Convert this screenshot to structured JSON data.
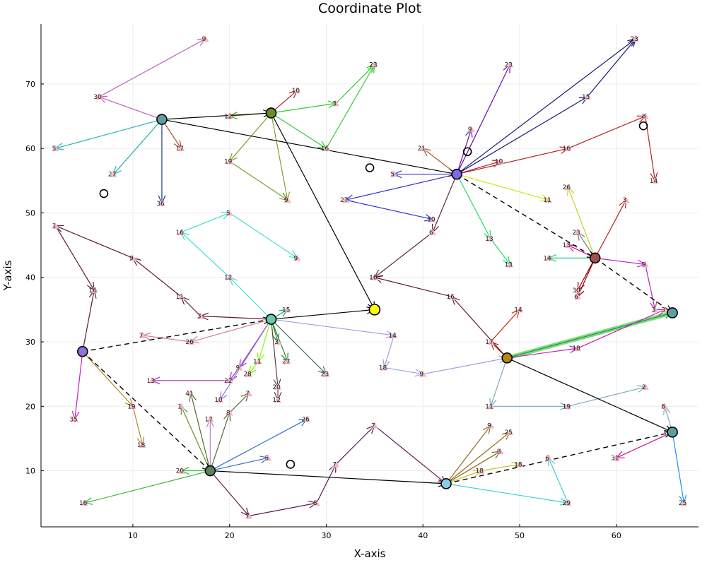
{
  "chart_data": {
    "type": "scatter",
    "title": "Coordinate Plot",
    "xlabel": "X-axis",
    "ylabel": "Y-axis",
    "xlim": [
      0.5,
      68.5
    ],
    "ylim": [
      1.3,
      79.3
    ],
    "xticks": [
      10,
      20,
      30,
      40,
      50,
      60
    ],
    "yticks": [
      10,
      20,
      30,
      40,
      50,
      60,
      70
    ],
    "grid": true,
    "legend": "none",
    "hubs": [
      {
        "id": "h1",
        "x": 13.0,
        "y": 64.5,
        "color": "#5f9ea0"
      },
      {
        "id": "h2",
        "x": 24.3,
        "y": 65.5,
        "color": "#6b8e23"
      },
      {
        "id": "h3",
        "x": 43.5,
        "y": 56.0,
        "color": "#7b68ee"
      },
      {
        "id": "h4",
        "x": 57.8,
        "y": 43.0,
        "color": "#a05050"
      },
      {
        "id": "h5",
        "x": 65.8,
        "y": 34.5,
        "color": "#5f9ea0"
      },
      {
        "id": "h6",
        "x": 24.3,
        "y": 33.5,
        "color": "#66cdaa"
      },
      {
        "id": "h7",
        "x": 4.8,
        "y": 28.5,
        "color": "#9370db"
      },
      {
        "id": "h8",
        "x": 48.7,
        "y": 27.5,
        "color": "#b8860b"
      },
      {
        "id": "h9",
        "x": 18.0,
        "y": 10.0,
        "color": "#5f7f5f"
      },
      {
        "id": "h10",
        "x": 42.4,
        "y": 8.0,
        "color": "#87ceeb"
      },
      {
        "id": "h11",
        "x": 65.8,
        "y": 16.0,
        "color": "#5f9ea0"
      }
    ],
    "target": {
      "x": 35.0,
      "y": 35.0,
      "color": "#ffff00"
    },
    "open_markers": [
      {
        "x": 7.0,
        "y": 53.0
      },
      {
        "x": 34.5,
        "y": 57.0
      },
      {
        "x": 44.6,
        "y": 59.5
      },
      {
        "x": 62.8,
        "y": 63.5
      },
      {
        "x": 26.3,
        "y": 11.0
      }
    ],
    "spokes": [
      {
        "from": "h1",
        "color": "#c060c0",
        "points": [
          {
            "label": "30",
            "x": 6.5,
            "y": 68.0
          },
          {
            "label": "9",
            "x": 17.5,
            "y": 77.0
          }
        ]
      },
      {
        "from": "h1",
        "color": "#20b2aa",
        "points": [
          {
            "label": "5",
            "x": 2.0,
            "y": 60.0
          }
        ]
      },
      {
        "from": "h1",
        "color": "#20b2aa",
        "points": [
          {
            "label": "27",
            "x": 8.0,
            "y": 56.0
          }
        ]
      },
      {
        "from": "h1",
        "color": "#1f3a93",
        "points": [
          {
            "label": "36",
            "x": 13.0,
            "y": 51.5
          }
        ]
      },
      {
        "from": "h1",
        "color": "#a0522d",
        "points": [
          {
            "label": "17",
            "x": 15.0,
            "y": 60.0
          }
        ]
      },
      {
        "from": "h2",
        "color": "#6b8e23",
        "points": [
          {
            "label": "12",
            "x": 20.0,
            "y": 65.0
          }
        ]
      },
      {
        "from": "h2",
        "color": "#b22222",
        "points": [
          {
            "label": "10",
            "x": 27.0,
            "y": 69.0
          }
        ]
      },
      {
        "from": "h2",
        "color": "#32cd32",
        "points": [
          {
            "label": "3",
            "x": 31.0,
            "y": 67.0
          },
          {
            "label": "23",
            "x": 35.0,
            "y": 73.0
          }
        ]
      },
      {
        "from": "h2",
        "color": "#32cd32",
        "points": [
          {
            "label": "16",
            "x": 30.0,
            "y": 60.0
          },
          {
            "label": "23",
            "x": 35.0,
            "y": 73.0
          }
        ]
      },
      {
        "from": "h2",
        "color": "#7f9f2f",
        "points": [
          {
            "label": "19",
            "x": 20.0,
            "y": 58.0
          },
          {
            "label": "9",
            "x": 26.0,
            "y": 52.0
          }
        ]
      },
      {
        "from": "h2",
        "color": "#7f9f2f",
        "points": [
          {
            "label": "9",
            "x": 26.0,
            "y": 52.0
          }
        ]
      },
      {
        "from": "h3",
        "color": "#6a0dad",
        "points": [
          {
            "label": "9",
            "x": 45.0,
            "y": 63.0
          }
        ]
      },
      {
        "from": "h3",
        "color": "#6a0dad",
        "points": [
          {
            "label": "23",
            "x": 49.0,
            "y": 73.0
          }
        ]
      },
      {
        "from": "h3",
        "color": "#191970",
        "points": [
          {
            "label": "15",
            "x": 57.0,
            "y": 68.0
          },
          {
            "label": "23",
            "x": 62.0,
            "y": 77.0
          }
        ]
      },
      {
        "from": "h3",
        "color": "#191970",
        "points": [
          {
            "label": "23",
            "x": 62.0,
            "y": 77.0
          }
        ]
      },
      {
        "from": "h3",
        "color": "#a0522d",
        "points": [
          {
            "label": "21",
            "x": 40.0,
            "y": 60.0
          }
        ]
      },
      {
        "from": "h3",
        "color": "#b22222",
        "points": [
          {
            "label": "10",
            "x": 48.0,
            "y": 58.0
          }
        ]
      },
      {
        "from": "h3",
        "color": "#b22222",
        "points": [
          {
            "label": "16",
            "x": 55.0,
            "y": 60.0
          },
          {
            "label": "8",
            "x": 63.0,
            "y": 65.0
          },
          {
            "label": "14",
            "x": 64.0,
            "y": 55.0
          }
        ]
      },
      {
        "from": "h3",
        "color": "#3333cc",
        "points": [
          {
            "label": "5",
            "x": 37.0,
            "y": 56.0
          }
        ]
      },
      {
        "from": "h3",
        "color": "#3333cc",
        "points": [
          {
            "label": "27",
            "x": 32.0,
            "y": 52.0
          },
          {
            "label": "10",
            "x": 41.0,
            "y": 49.0
          }
        ]
      },
      {
        "from": "h3",
        "color": "#d4e020",
        "points": [
          {
            "label": "11",
            "x": 53.0,
            "y": 52.0
          }
        ]
      },
      {
        "from": "h3",
        "color": "#22dd66",
        "points": [
          {
            "label": "13",
            "x": 47.0,
            "y": 46.0
          },
          {
            "label": "13",
            "x": 49.0,
            "y": 42.0
          }
        ]
      },
      {
        "from": "h3",
        "color": "#5c2a3f",
        "points": [
          {
            "label": "6",
            "x": 41.0,
            "y": 47.0
          },
          {
            "label": "16",
            "x": 35.0,
            "y": 40.0
          }
        ]
      },
      {
        "from": "h4",
        "color": "#b22222",
        "points": [
          {
            "label": "3",
            "x": 61.0,
            "y": 52.0
          }
        ]
      },
      {
        "from": "h4",
        "color": "#c8d020",
        "points": [
          {
            "label": "26",
            "x": 55.0,
            "y": 54.0
          }
        ]
      },
      {
        "from": "h4",
        "color": "#708090",
        "points": [
          {
            "label": "23",
            "x": 56.0,
            "y": 47.0
          }
        ]
      },
      {
        "from": "h4",
        "color": "#c71585",
        "points": [
          {
            "label": "13",
            "x": 55.0,
            "y": 45.0
          }
        ]
      },
      {
        "from": "h4",
        "color": "#20cc80",
        "points": [
          {
            "label": "14",
            "x": 53.0,
            "y": 43.0
          }
        ]
      },
      {
        "from": "h4",
        "color": "#c020c0",
        "points": [
          {
            "label": "9",
            "x": 63.0,
            "y": 42.0
          },
          {
            "label": "3",
            "x": 64.0,
            "y": 35.0
          }
        ]
      },
      {
        "from": "h4",
        "color": "#8b0000",
        "points": [
          {
            "label": "30",
            "x": 56.0,
            "y": 38.0
          }
        ]
      },
      {
        "from": "h4",
        "color": "#8b0000",
        "points": [
          {
            "label": "6",
            "x": 56.0,
            "y": 37.0
          }
        ]
      },
      {
        "from": "h6",
        "color": "#40e0d0",
        "points": [
          {
            "label": "12",
            "x": 20.0,
            "y": 40.0
          },
          {
            "label": "16",
            "x": 15.0,
            "y": 47.0
          },
          {
            "label": "5",
            "x": 20.0,
            "y": 50.0
          },
          {
            "label": "9",
            "x": 27.0,
            "y": 43.0
          }
        ]
      },
      {
        "from": "h6",
        "color": "#5c1a3a",
        "points": [
          {
            "label": "3",
            "x": 17.0,
            "y": 34.0
          },
          {
            "label": "11",
            "x": 15.0,
            "y": 37.0
          },
          {
            "label": "9",
            "x": 10.0,
            "y": 43.0
          },
          {
            "label": "1",
            "x": 2.0,
            "y": 48.0
          },
          {
            "label": "16",
            "x": 6.0,
            "y": 38.0
          }
        ]
      },
      {
        "from": "h6",
        "color": "#d08090",
        "points": [
          {
            "label": "26",
            "x": 16.0,
            "y": 30.0
          },
          {
            "label": "7",
            "x": 11.0,
            "y": 31.0
          }
        ]
      },
      {
        "from": "h6",
        "color": "#20a070",
        "points": [
          {
            "label": "15",
            "x": 26.0,
            "y": 35.0
          }
        ]
      },
      {
        "from": "h6",
        "color": "#a0a0e0",
        "points": [
          {
            "label": "14",
            "x": 37.0,
            "y": 31.0
          },
          {
            "label": "18",
            "x": 36.0,
            "y": 26.0
          },
          {
            "label": "9",
            "x": 40.0,
            "y": 25.0
          },
          {
            "label": "",
            "x": 48.7,
            "y": 27.5
          }
        ]
      },
      {
        "from": "h6",
        "color": "#3f6f5f",
        "points": [
          {
            "label": "23",
            "x": 30.0,
            "y": 25.0
          }
        ]
      },
      {
        "from": "h6",
        "color": "#228b22",
        "points": [
          {
            "label": "27",
            "x": 26.0,
            "y": 27.0
          }
        ]
      },
      {
        "from": "h6",
        "color": "#228b22",
        "points": [
          {
            "label": "3",
            "x": 25.0,
            "y": 30.0
          }
        ]
      },
      {
        "from": "h6",
        "color": "#7cfc00",
        "points": [
          {
            "label": "11",
            "x": 23.0,
            "y": 27.0
          },
          {
            "label": "28",
            "x": 22.0,
            "y": 25.0
          }
        ]
      },
      {
        "from": "h6",
        "color": "#5a4040",
        "points": [
          {
            "label": "20",
            "x": 25.0,
            "y": 23.0
          },
          {
            "label": "12",
            "x": 25.0,
            "y": 21.0
          }
        ]
      },
      {
        "from": "h6",
        "color": "#9932cc",
        "points": [
          {
            "label": "9",
            "x": 21.0,
            "y": 26.0
          },
          {
            "label": "22",
            "x": 20.0,
            "y": 24.0
          },
          {
            "label": "13",
            "x": 12.0,
            "y": 24.0
          }
        ]
      },
      {
        "from": "h6",
        "color": "#9370db",
        "points": [
          {
            "label": "10",
            "x": 19.0,
            "y": 21.0
          }
        ]
      },
      {
        "from": "h7",
        "color": "#5c1a3a",
        "points": [
          {
            "label": "16",
            "x": 6.0,
            "y": 38.0
          }
        ]
      },
      {
        "from": "h7",
        "color": "#c020c0",
        "points": [
          {
            "label": "35",
            "x": 4.0,
            "y": 18.0
          }
        ]
      },
      {
        "from": "h7",
        "color": "#b8862b",
        "points": [
          {
            "label": "19",
            "x": 10.0,
            "y": 20.0
          },
          {
            "label": "18",
            "x": 11.0,
            "y": 14.0
          }
        ]
      },
      {
        "from": "h8",
        "color": "#cc2200",
        "points": [
          {
            "label": "17",
            "x": 47.0,
            "y": 30.0
          },
          {
            "label": "14",
            "x": 50.0,
            "y": 35.0
          }
        ]
      },
      {
        "from": "h8",
        "color": "#5c1a3a",
        "points": [
          {
            "label": "16",
            "x": 43.0,
            "y": 37.0
          },
          {
            "label": "16",
            "x": 35.0,
            "y": 40.0
          }
        ]
      },
      {
        "from": "h8",
        "color": "#c020c0",
        "points": [
          {
            "label": "18",
            "x": 56.0,
            "y": 29.0
          },
          {
            "label": "3",
            "x": 65.0,
            "y": 35.0
          }
        ]
      },
      {
        "from": "h8",
        "color": "#7fa8b8",
        "points": [
          {
            "label": "11",
            "x": 47.0,
            "y": 20.0
          },
          {
            "label": "19",
            "x": 55.0,
            "y": 20.0
          },
          {
            "label": "2",
            "x": 63.0,
            "y": 23.0
          }
        ]
      },
      {
        "from": "h9",
        "color": "#556b2f",
        "points": [
          {
            "label": "41",
            "x": 16.0,
            "y": 22.0
          }
        ]
      },
      {
        "from": "h9",
        "color": "#6b8e23",
        "points": [
          {
            "label": "1",
            "x": 15.0,
            "y": 20.0
          }
        ]
      },
      {
        "from": "h9",
        "color": "#c080d0",
        "points": [
          {
            "label": "17",
            "x": 18.0,
            "y": 18.0
          }
        ]
      },
      {
        "from": "h9",
        "color": "#556b2f",
        "points": [
          {
            "label": "8",
            "x": 20.0,
            "y": 19.0
          },
          {
            "label": "7",
            "x": 22.0,
            "y": 22.0
          }
        ]
      },
      {
        "from": "h9",
        "color": "#3070c0",
        "points": [
          {
            "label": "5",
            "x": 24.0,
            "y": 12.0
          }
        ]
      },
      {
        "from": "h9",
        "color": "#3070c0",
        "points": [
          {
            "label": "26",
            "x": 28.0,
            "y": 18.0
          }
        ]
      },
      {
        "from": "h9",
        "color": "#33bb33",
        "points": [
          {
            "label": "20",
            "x": 15.0,
            "y": 10.0
          }
        ]
      },
      {
        "from": "h9",
        "color": "#33bb33",
        "points": [
          {
            "label": "16",
            "x": 5.0,
            "y": 5.0
          }
        ]
      },
      {
        "from": "h9",
        "color": "#5c1a4f",
        "points": [
          {
            "label": "7",
            "x": 22.0,
            "y": 3.0
          },
          {
            "label": "8",
            "x": 29.0,
            "y": 5.0
          },
          {
            "label": "7",
            "x": 31.0,
            "y": 11.0
          },
          {
            "label": "7",
            "x": 35.0,
            "y": 17.0
          },
          {
            "label": "",
            "x": 42.4,
            "y": 8.0
          }
        ]
      },
      {
        "from": "h10",
        "color": "#8b6914",
        "points": [
          {
            "label": "9",
            "x": 47.0,
            "y": 17.0
          }
        ]
      },
      {
        "from": "h10",
        "color": "#8b6914",
        "points": [
          {
            "label": "25",
            "x": 49.0,
            "y": 16.0
          }
        ]
      },
      {
        "from": "h10",
        "color": "#8b6914",
        "points": [
          {
            "label": "8",
            "x": 48.0,
            "y": 13.0
          }
        ]
      },
      {
        "from": "h10",
        "color": "#c8c020",
        "points": [
          {
            "label": "18",
            "x": 46.0,
            "y": 10.0
          },
          {
            "label": "18",
            "x": 50.0,
            "y": 11.0
          }
        ]
      },
      {
        "from": "h10",
        "color": "#40d0d0",
        "points": [
          {
            "label": "29",
            "x": 55.0,
            "y": 5.0
          },
          {
            "label": "6",
            "x": 53.0,
            "y": 12.0
          }
        ]
      },
      {
        "from": "h11",
        "color": "#7fa8b8",
        "points": [
          {
            "label": "6",
            "x": 65.0,
            "y": 20.0
          }
        ]
      },
      {
        "from": "h11",
        "color": "#c71585",
        "points": [
          {
            "label": "31",
            "x": 60.0,
            "y": 12.0
          }
        ]
      },
      {
        "from": "h11",
        "color": "#1e90ff",
        "points": [
          {
            "label": "25",
            "x": 67.0,
            "y": 5.0
          }
        ]
      }
    ],
    "solid_links": [
      {
        "from": "h1",
        "to": "h2"
      },
      {
        "from": "h1",
        "to": "h3"
      },
      {
        "from": "h2",
        "to": "target"
      },
      {
        "from": "h6",
        "to": "target"
      },
      {
        "from": "h8",
        "to": "h11"
      },
      {
        "from": "h9",
        "to": "h10"
      }
    ],
    "dashed_links": [
      {
        "from": "h3",
        "to": "h4"
      },
      {
        "from": "h4",
        "to": "h5"
      },
      {
        "from": "h7",
        "to": "h6"
      },
      {
        "from": "h7",
        "to": "h9"
      },
      {
        "from": "h10",
        "to": "h11"
      }
    ],
    "highlight_links": [
      {
        "from": "h8",
        "to": "h5",
        "color": "#7ddc7d"
      }
    ]
  }
}
